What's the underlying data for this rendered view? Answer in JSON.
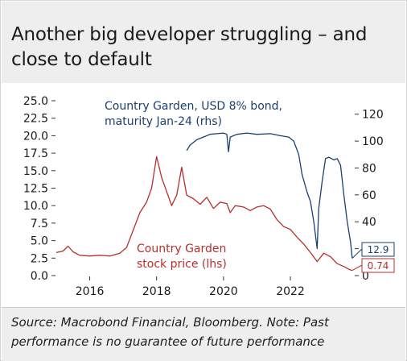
{
  "title": "Another big developer struggling – and close to default",
  "source": "Source: Macrobond Financial, Bloomberg. Note: Past performance is no guarantee of future performance",
  "colors": {
    "stock": "#b5302d",
    "bond": "#1c3f6e",
    "axis": "#333333"
  },
  "chart_data": {
    "type": "line",
    "x_ticks": [
      "2016",
      "2018",
      "2020",
      "2022"
    ],
    "xlim": [
      2015.0,
      2023.9
    ],
    "left_axis": {
      "ticks": [
        "25.0",
        "22.5",
        "20.0",
        "17.5",
        "15.0",
        "12.5",
        "10.0",
        "7.5",
        "5.0",
        "2.5",
        "0.0"
      ],
      "ylim": [
        0,
        25
      ]
    },
    "right_axis": {
      "ticks": [
        "120",
        "100",
        "80",
        "60",
        "40",
        "20",
        "0"
      ],
      "ylim": [
        0,
        130
      ]
    },
    "series": [
      {
        "name": "Country Garden stock price (lhs)",
        "label_lines": [
          "Country Garden",
          "stock price (lhs)"
        ],
        "axis": "left",
        "end_value": "0.74",
        "points": [
          [
            2015.0,
            3.3
          ],
          [
            2015.2,
            3.5
          ],
          [
            2015.35,
            4.2
          ],
          [
            2015.5,
            3.4
          ],
          [
            2015.7,
            2.9
          ],
          [
            2016.0,
            2.8
          ],
          [
            2016.3,
            2.9
          ],
          [
            2016.6,
            2.8
          ],
          [
            2016.9,
            3.2
          ],
          [
            2017.1,
            4.0
          ],
          [
            2017.3,
            6.5
          ],
          [
            2017.5,
            9.0
          ],
          [
            2017.7,
            10.5
          ],
          [
            2017.85,
            12.5
          ],
          [
            2018.0,
            17.0
          ],
          [
            2018.15,
            14.0
          ],
          [
            2018.3,
            12.0
          ],
          [
            2018.45,
            10.0
          ],
          [
            2018.6,
            11.5
          ],
          [
            2018.75,
            15.5
          ],
          [
            2018.9,
            11.5
          ],
          [
            2019.1,
            11.0
          ],
          [
            2019.3,
            10.2
          ],
          [
            2019.5,
            11.2
          ],
          [
            2019.7,
            9.6
          ],
          [
            2019.9,
            10.5
          ],
          [
            2020.1,
            10.3
          ],
          [
            2020.2,
            9.0
          ],
          [
            2020.35,
            10.0
          ],
          [
            2020.6,
            9.8
          ],
          [
            2020.8,
            9.3
          ],
          [
            2021.0,
            9.8
          ],
          [
            2021.2,
            10.0
          ],
          [
            2021.4,
            9.5
          ],
          [
            2021.6,
            8.0
          ],
          [
            2021.8,
            7.0
          ],
          [
            2022.0,
            6.6
          ],
          [
            2022.2,
            5.5
          ],
          [
            2022.4,
            4.5
          ],
          [
            2022.6,
            3.3
          ],
          [
            2022.8,
            2.0
          ],
          [
            2023.0,
            3.2
          ],
          [
            2023.2,
            2.7
          ],
          [
            2023.4,
            1.7
          ],
          [
            2023.6,
            1.3
          ],
          [
            2023.75,
            0.9
          ],
          [
            2023.85,
            0.74
          ]
        ]
      },
      {
        "name": "Country Garden, USD 8% bond, maturity Jan-24 (rhs)",
        "label_lines": [
          "Country Garden, USD 8% bond,",
          "maturity Jan-24 (rhs)"
        ],
        "axis": "right",
        "end_value": "12.9",
        "points": [
          [
            2018.9,
            93.0
          ],
          [
            2019.0,
            97.0
          ],
          [
            2019.2,
            101.0
          ],
          [
            2019.4,
            103.0
          ],
          [
            2019.6,
            105.0
          ],
          [
            2019.8,
            105.5
          ],
          [
            2020.0,
            106.0
          ],
          [
            2020.1,
            105.0
          ],
          [
            2020.15,
            92.0
          ],
          [
            2020.2,
            103.0
          ],
          [
            2020.4,
            105.0
          ],
          [
            2020.7,
            106.0
          ],
          [
            2021.0,
            105.0
          ],
          [
            2021.4,
            105.5
          ],
          [
            2021.7,
            104.0
          ],
          [
            2021.95,
            103.0
          ],
          [
            2022.1,
            100.0
          ],
          [
            2022.25,
            90.0
          ],
          [
            2022.35,
            75.0
          ],
          [
            2022.5,
            62.0
          ],
          [
            2022.6,
            55.0
          ],
          [
            2022.7,
            40.0
          ],
          [
            2022.8,
            20.0
          ],
          [
            2022.85,
            50.0
          ],
          [
            2022.95,
            70.0
          ],
          [
            2023.05,
            87.0
          ],
          [
            2023.15,
            88.0
          ],
          [
            2023.3,
            86.0
          ],
          [
            2023.4,
            87.0
          ],
          [
            2023.5,
            82.0
          ],
          [
            2023.6,
            60.0
          ],
          [
            2023.7,
            40.0
          ],
          [
            2023.8,
            25.0
          ],
          [
            2023.85,
            12.9
          ]
        ]
      }
    ]
  }
}
